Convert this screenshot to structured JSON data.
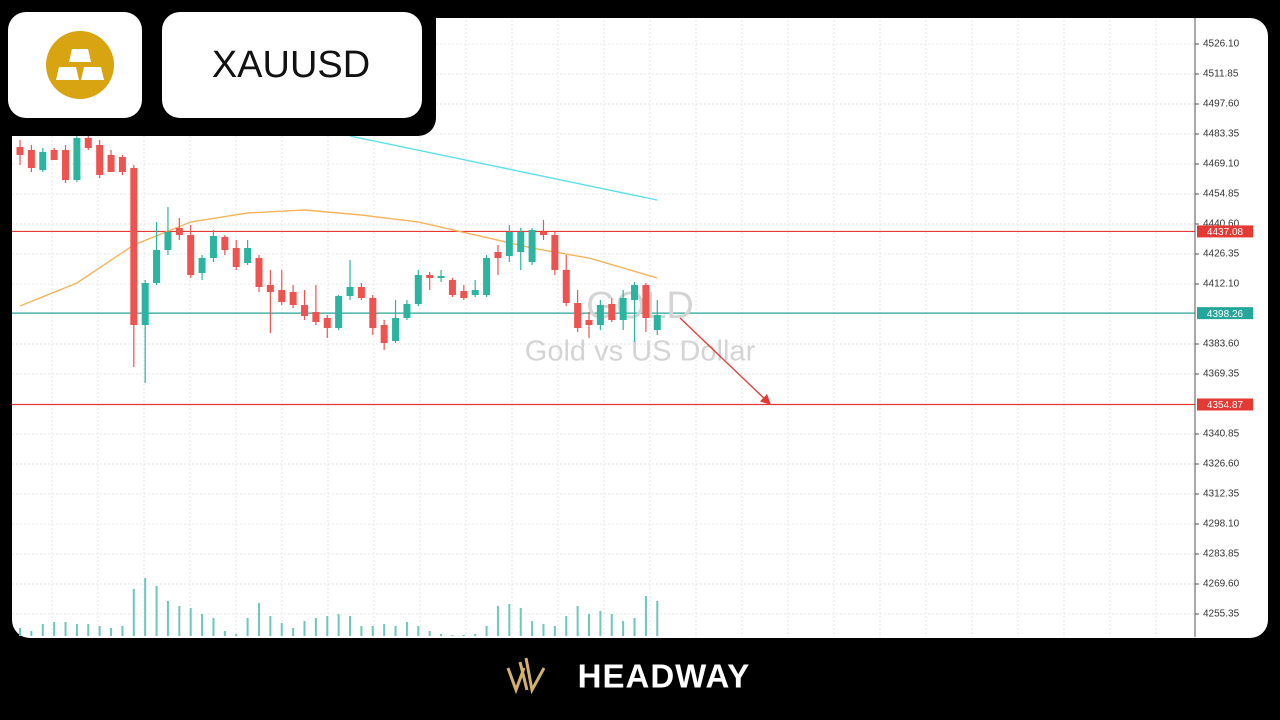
{
  "symbol": "XAUUSD",
  "brand": "HEADWAY",
  "chart_data": {
    "type": "candlestick",
    "watermark_title": "GOLD",
    "watermark_subtitle": "Gold vs US Dollar",
    "up_color": "#2bb5a0",
    "down_color": "#ef5350",
    "open": [
      4477.18,
      4475.75,
      4466.25,
      4475.75,
      4475.75,
      4461.5,
      4481.45,
      4478.13,
      4473.38,
      4472.43,
      4467.2,
      4392.63,
      4412.58,
      4428.25,
      4438.7,
      4435.38,
      4417.33,
      4424.45,
      4434.43,
      4429.2,
      4422.08,
      4424.45,
      4411.63,
      4409.25,
      4408.3,
      4402.13,
      4398.8,
      4395.95,
      4391.2,
      4406.4,
      4410.68,
      4405.45,
      4392.63,
      4385.03,
      4395.95,
      4402.6,
      4416.38,
      4414.95,
      4414.0,
      4408.78,
      4406.88,
      4406.88,
      4427.3,
      4425.4,
      4427.3,
      4422.55,
      4436.8,
      4435.38,
      4418.75,
      4403.08,
      4395.0,
      4392.63,
      4402.6,
      4395.0,
      4404.5,
      4411.63,
      4390.25
    ],
    "high": [
      4480.5,
      4478.13,
      4476.7,
      4476.7,
      4478.13,
      4485.25,
      4485.25,
      4480.5,
      4475.75,
      4473.38,
      4468.63,
      4414.0,
      4441.55,
      4448.68,
      4443.45,
      4440.13,
      4425.88,
      4437.75,
      4435.38,
      4433.0,
      4433.0,
      4425.88,
      4418.75,
      4418.75,
      4411.63,
      4409.25,
      4411.63,
      4397.38,
      4406.88,
      4423.5,
      4412.58,
      4406.88,
      4395.0,
      4404.5,
      4404.5,
      4418.75,
      4417.8,
      4418.75,
      4414.95,
      4411.63,
      4414.0,
      4425.88,
      4430.63,
      4440.13,
      4438.7,
      4438.7,
      4442.5,
      4436.8,
      4425.88,
      4409.25,
      4398.8,
      4404.5,
      4405.45,
      4409.25,
      4413.05,
      4412.58,
      4404.5
    ],
    "low": [
      4468.63,
      4465.3,
      4465.3,
      4471.0,
      4460.08,
      4460.55,
      4475.75,
      4462.45,
      4465.3,
      4463.88,
      4372.68,
      4365.08,
      4411.63,
      4425.88,
      4433.0,
      4414.95,
      4414.0,
      4422.55,
      4425.88,
      4418.75,
      4421.13,
      4408.3,
      4388.83,
      4402.13,
      4400.7,
      4395.0,
      4392.63,
      4386.45,
      4390.25,
      4404.5,
      4404.5,
      4387.88,
      4380.75,
      4384.08,
      4395.0,
      4401.65,
      4409.25,
      4413.05,
      4405.93,
      4404.5,
      4405.93,
      4405.93,
      4416.38,
      4422.55,
      4418.75,
      4421.13,
      4433.0,
      4416.38,
      4401.65,
      4389.3,
      4386.45,
      4390.25,
      4394.05,
      4390.25,
      4384.55,
      4389.3,
      4387.88
    ],
    "close": [
      4473.38,
      4467.2,
      4474.8,
      4471.0,
      4461.5,
      4481.45,
      4476.7,
      4463.88,
      4465.3,
      4465.3,
      4392.63,
      4412.58,
      4428.25,
      4436.8,
      4435.38,
      4416.38,
      4424.45,
      4434.9,
      4428.25,
      4420.18,
      4429.2,
      4410.68,
      4408.3,
      4403.55,
      4402.13,
      4396.9,
      4394.05,
      4391.2,
      4406.4,
      4410.68,
      4405.45,
      4391.2,
      4384.08,
      4395.95,
      4402.6,
      4416.38,
      4414.95,
      4415.9,
      4406.88,
      4405.45,
      4409.25,
      4424.45,
      4424.45,
      4436.8,
      4436.8,
      4437.75,
      4435.38,
      4418.75,
      4403.08,
      4391.2,
      4392.63,
      4402.13,
      4395.0,
      4405.45,
      4411.63,
      4395.95,
      4397.38
    ],
    "moving_averages": [
      {
        "color": "#f5b35c",
        "values": [
          4401.65,
          4403.84,
          4406.02,
          4408.21,
          4410.39,
          4412.58,
          4416.19,
          4419.8,
          4423.41,
          4427.02,
          4430.63,
          4432.81,
          4435.0,
          4437.18,
          4439.37,
          4441.55,
          4442.41,
          4443.26,
          4444.12,
          4444.97,
          4445.83,
          4446.11,
          4446.4,
          4446.68,
          4446.97,
          4447.25,
          4446.78,
          4446.3,
          4445.83,
          4445.35,
          4444.88,
          4444.21,
          4443.55,
          4442.88,
          4442.22,
          4441.55,
          4440.32,
          4439.08,
          4437.85,
          4436.61,
          4435.38,
          4434.14,
          4432.91,
          4431.67,
          4430.44,
          4429.2,
          4428.25,
          4427.3,
          4426.35,
          4425.4,
          4424.45,
          4422.87,
          4421.28,
          4419.7,
          4418.12,
          4416.53,
          4414.95
        ]
      },
      {
        "color": "#5ee0ea",
        "values": [
          null,
          null,
          null,
          null,
          null,
          null,
          null,
          null,
          null,
          null,
          null,
          null,
          null,
          null,
          null,
          null,
          null,
          null,
          null,
          null,
          null,
          null,
          null,
          null,
          null,
          null,
          null,
          null,
          null,
          4482.4,
          4481.27,
          4480.15,
          4479.02,
          4477.9,
          4476.77,
          4475.64,
          4474.52,
          4473.39,
          4472.27,
          4471.14,
          4470.02,
          4468.89,
          4467.76,
          4466.64,
          4465.51,
          4464.39,
          4463.26,
          4462.13,
          4461.01,
          4459.88,
          4458.76,
          4457.63,
          4456.51,
          4455.38,
          4454.25,
          4453.13,
          4452.0
        ]
      }
    ],
    "price_lines": [
      {
        "value": 4437.08,
        "color": "#e53935"
      },
      {
        "value": 4398.26,
        "color": "#26a69a"
      },
      {
        "value": 4354.87,
        "color": "#e53935"
      }
    ],
    "volume": {
      "color": "#6cc7bc",
      "values": [
        8,
        5,
        12,
        14,
        14,
        12,
        12,
        10,
        8,
        10,
        47,
        58,
        50,
        35,
        30,
        28,
        22,
        18,
        5,
        2,
        18,
        33,
        20,
        13,
        8,
        15,
        18,
        20,
        22,
        20,
        10,
        10,
        12,
        10,
        14,
        10,
        5,
        2,
        1,
        1,
        2,
        10,
        30,
        32,
        28,
        15,
        12,
        10,
        20,
        30,
        22,
        25,
        22,
        15,
        18,
        40,
        35
      ]
    },
    "ylim": [
      4244.43,
      4538.45
    ],
    "yticks": [
      {
        "value": 4526.1,
        "label": "4526.10"
      },
      {
        "value": 4511.85,
        "label": "4511.85"
      },
      {
        "value": 4497.6,
        "label": "4497.60"
      },
      {
        "value": 4483.35,
        "label": "4483.35"
      },
      {
        "value": 4469.1,
        "label": "4469.10"
      },
      {
        "value": 4454.85,
        "label": "4454.85"
      },
      {
        "value": 4440.6,
        "label": "4440.60"
      },
      {
        "value": 4426.35,
        "label": "4426.35"
      },
      {
        "value": 4412.1,
        "label": "4412.10"
      },
      {
        "value": 4383.6,
        "label": "4383.60"
      },
      {
        "value": 4369.35,
        "label": "4369.35"
      },
      {
        "value": 4340.85,
        "label": "4340.85"
      },
      {
        "value": 4326.6,
        "label": "4326.60"
      },
      {
        "value": 4312.35,
        "label": "4312.35"
      },
      {
        "value": 4298.1,
        "label": "4298.10"
      },
      {
        "value": 4283.85,
        "label": "4283.85"
      },
      {
        "value": 4269.6,
        "label": "4269.60"
      },
      {
        "value": 4255.35,
        "label": "4255.35"
      }
    ],
    "grid": true
  }
}
